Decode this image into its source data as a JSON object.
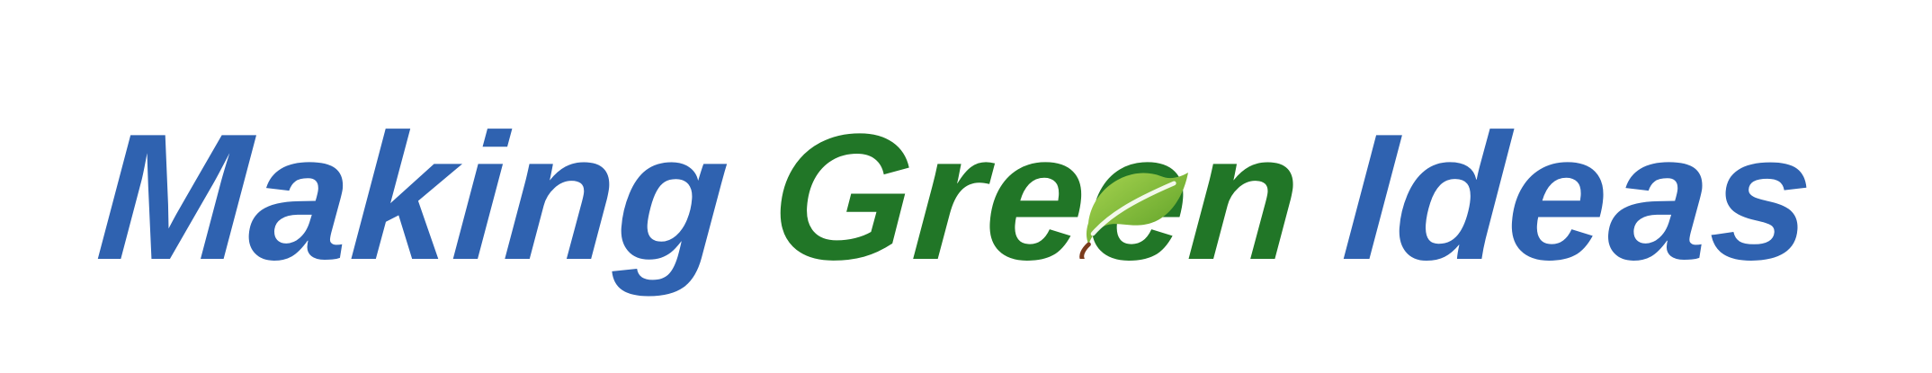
{
  "logo": {
    "word1": "Making",
    "word2_part1": "Gre",
    "word2_leaf_e": "e",
    "word2_part2": "n",
    "word3": "Ideas",
    "colors": {
      "blue": "#2f62b0",
      "green": "#217627",
      "leaf_light": "#8cc43b",
      "leaf_dark": "#5a9e26"
    },
    "icon": "leaf-icon"
  }
}
